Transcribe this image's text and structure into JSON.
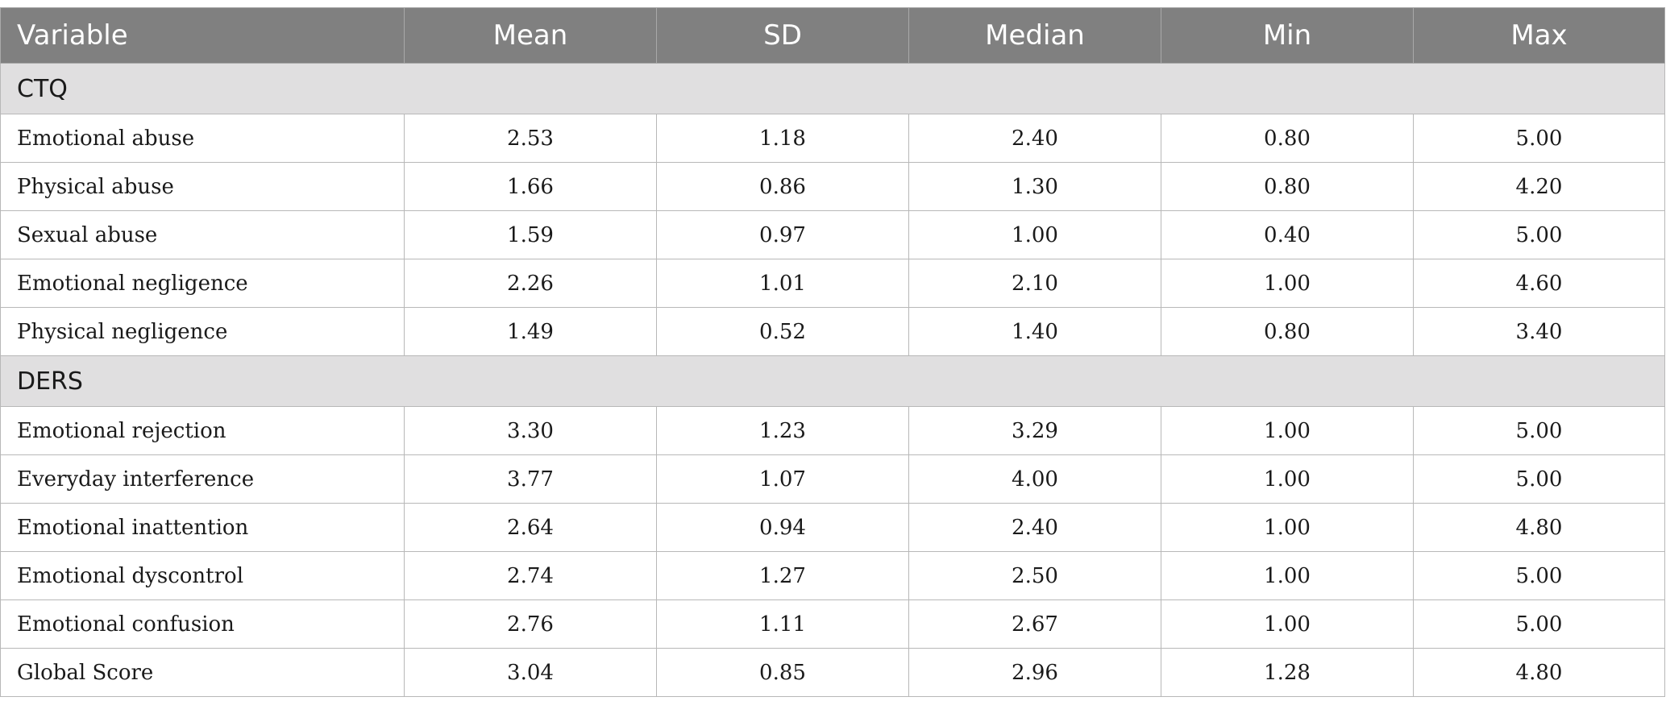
{
  "headers": [
    "Variable",
    "Mean",
    "SD",
    "Median",
    "Min",
    "Max"
  ],
  "sections": [
    {
      "title": "CTQ",
      "rows": [
        {
          "variable": "Emotional abuse",
          "mean": "2.53",
          "sd": "1.18",
          "median": "2.40",
          "min": "0.80",
          "max": "5.00"
        },
        {
          "variable": "Physical abuse",
          "mean": "1.66",
          "sd": "0.86",
          "median": "1.30",
          "min": "0.80",
          "max": "4.20"
        },
        {
          "variable": "Sexual abuse",
          "mean": "1.59",
          "sd": "0.97",
          "median": "1.00",
          "min": "0.40",
          "max": "5.00"
        },
        {
          "variable": "Emotional negligence",
          "mean": "2.26",
          "sd": "1.01",
          "median": "2.10",
          "min": "1.00",
          "max": "4.60"
        },
        {
          "variable": "Physical negligence",
          "mean": "1.49",
          "sd": "0.52",
          "median": "1.40",
          "min": "0.80",
          "max": "3.40"
        }
      ]
    },
    {
      "title": "DERS",
      "rows": [
        {
          "variable": "Emotional rejection",
          "mean": "3.30",
          "sd": "1.23",
          "median": "3.29",
          "min": "1.00",
          "max": "5.00"
        },
        {
          "variable": "Everyday interference",
          "mean": "3.77",
          "sd": "1.07",
          "median": "4.00",
          "min": "1.00",
          "max": "5.00"
        },
        {
          "variable": "Emotional inattention",
          "mean": "2.64",
          "sd": "0.94",
          "median": "2.40",
          "min": "1.00",
          "max": "4.80"
        },
        {
          "variable": "Emotional dyscontrol",
          "mean": "2.74",
          "sd": "1.27",
          "median": "2.50",
          "min": "1.00",
          "max": "5.00"
        },
        {
          "variable": "Emotional confusion",
          "mean": "2.76",
          "sd": "1.11",
          "median": "2.67",
          "min": "1.00",
          "max": "5.00"
        },
        {
          "variable": "Global Score",
          "mean": "3.04",
          "sd": "0.85",
          "median": "2.96",
          "min": "1.28",
          "max": "4.80"
        }
      ]
    }
  ]
}
